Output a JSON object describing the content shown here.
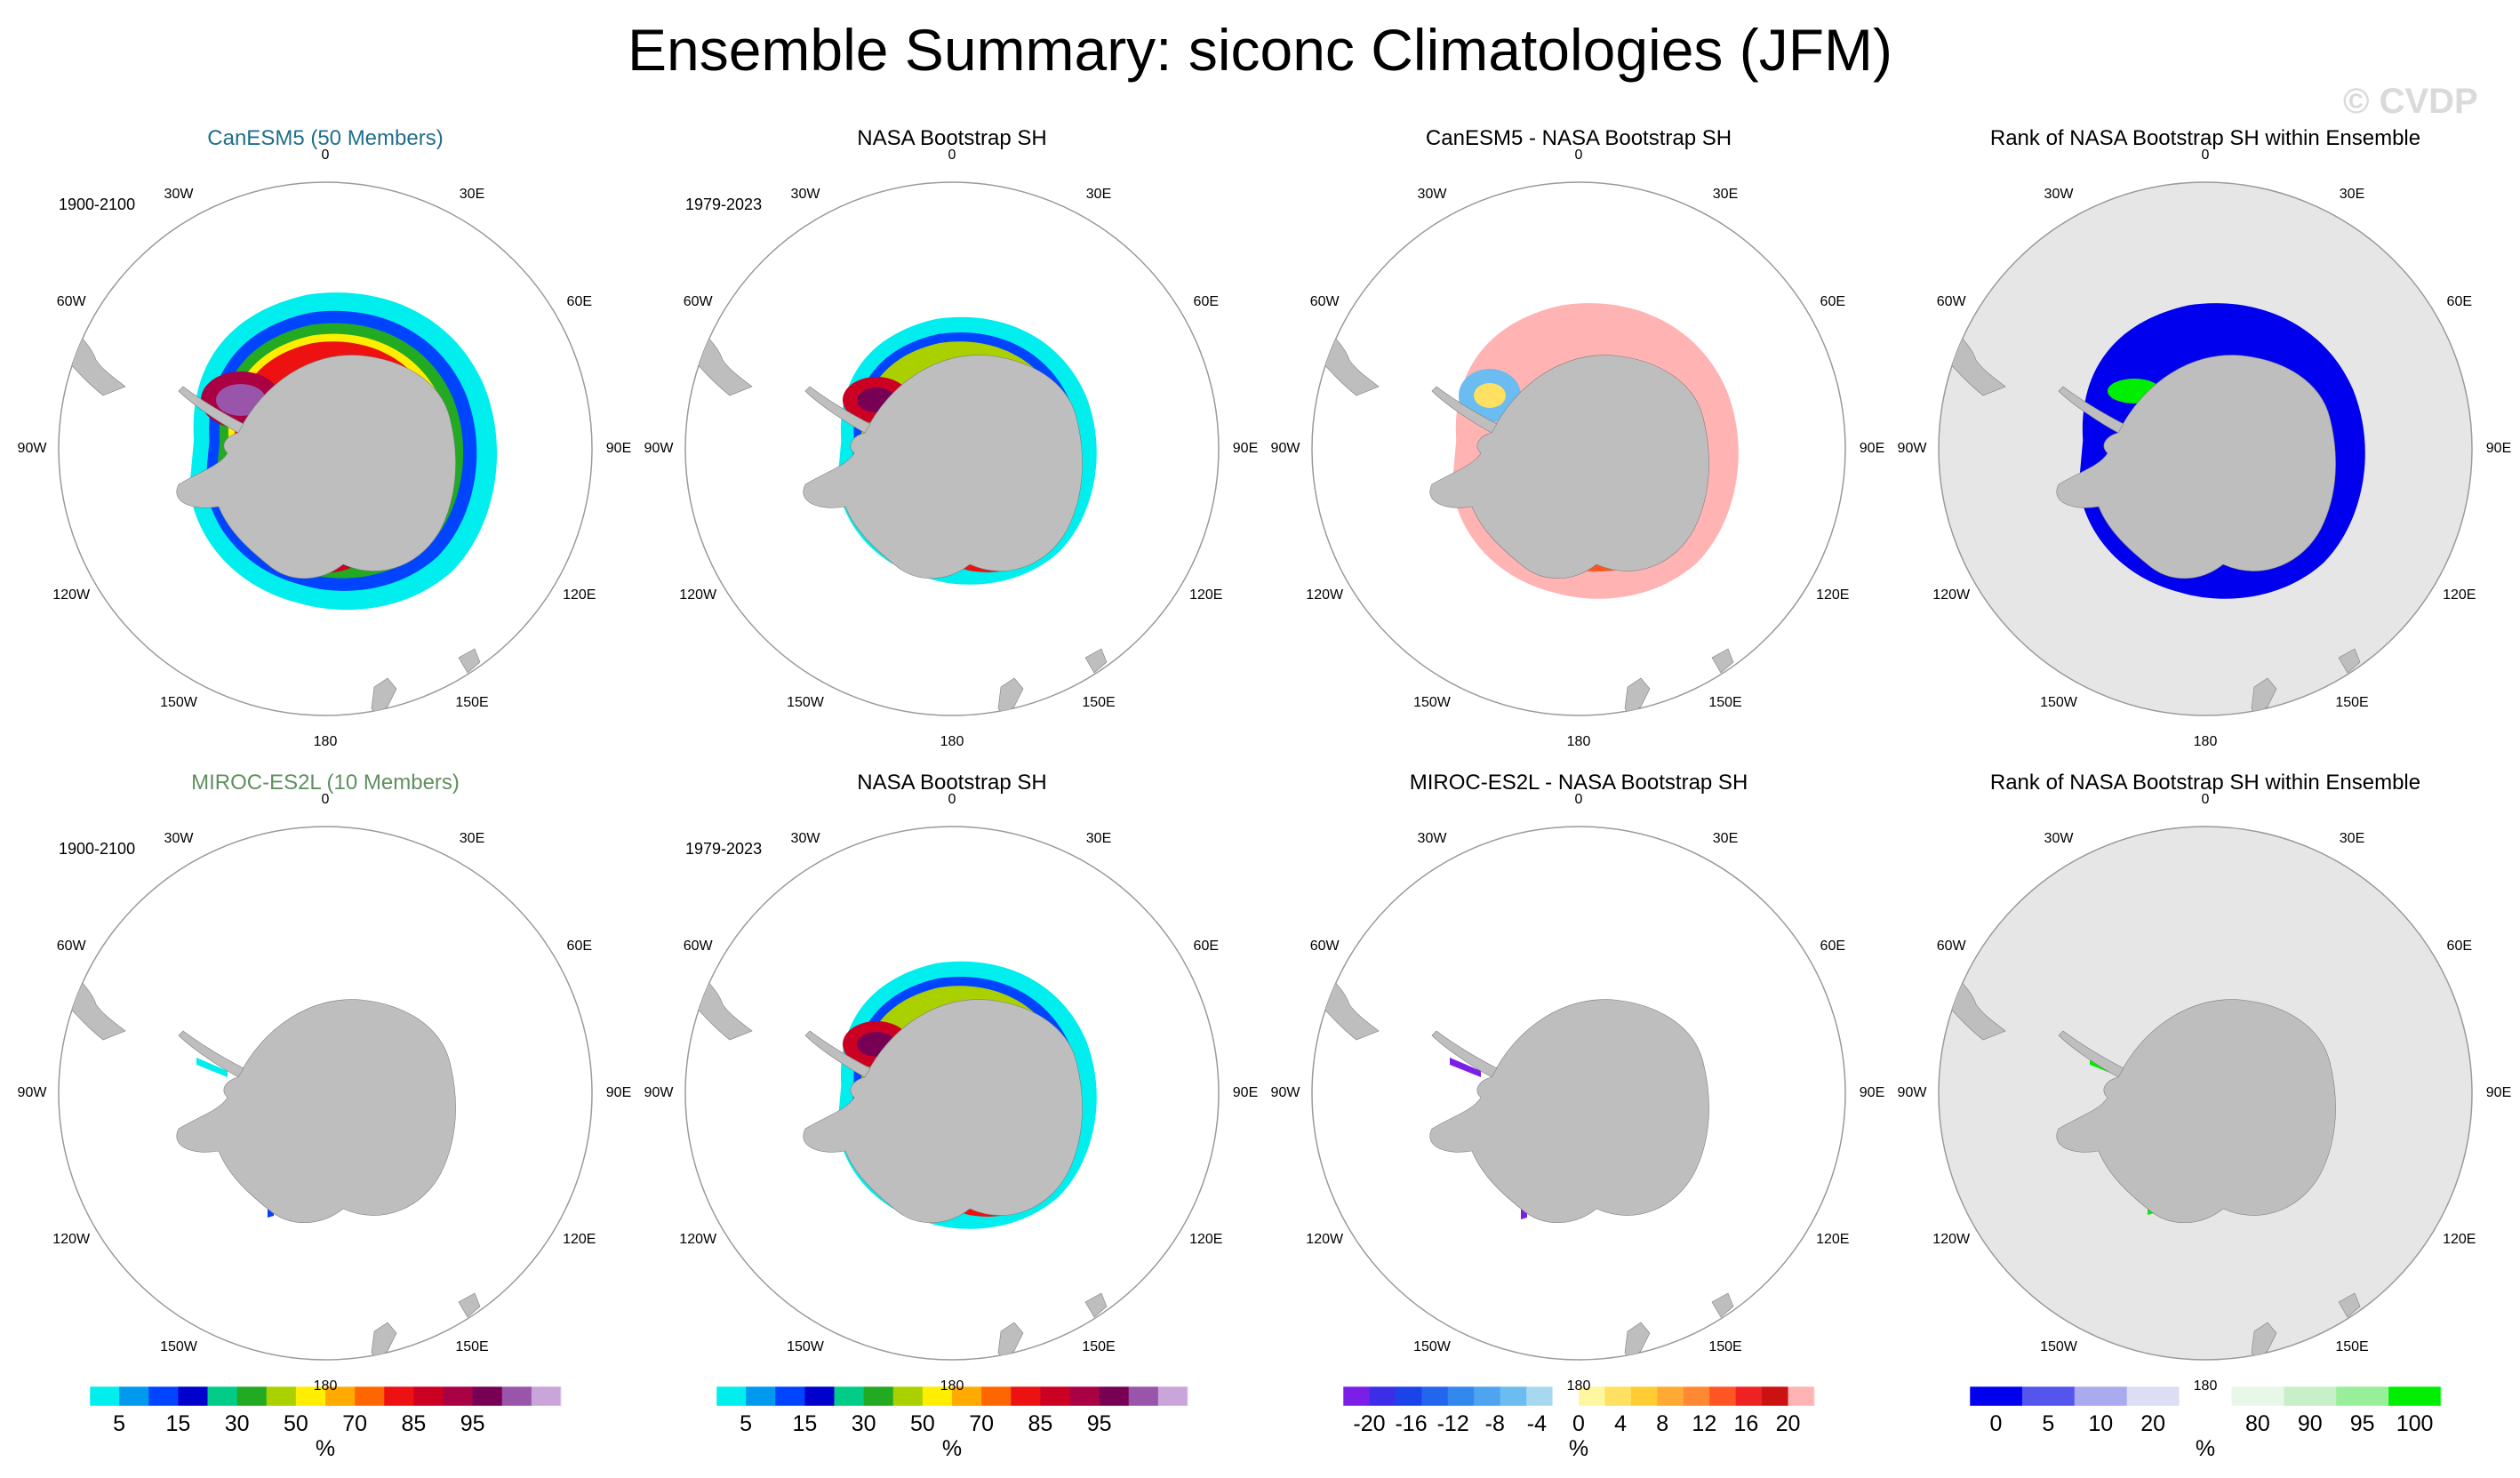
{
  "title": "Ensemble Summary: siconc Climatologies (JFM)",
  "watermark": "© CVDP",
  "longitude_labels": [
    "0",
    "30E",
    "60E",
    "90E",
    "120E",
    "150E",
    "180",
    "150W",
    "120W",
    "90W",
    "60W",
    "30W"
  ],
  "colors": {
    "land": "#bebebe",
    "rank_ocean": "#e6e6e6",
    "frame": "#9a9a9a",
    "canesm_title": "#1f6e8c",
    "miroc_title": "#5f8f5f"
  },
  "panels": [
    {
      "title": "CanESM5 (50 Members)",
      "period": "1900-2100"
    },
    {
      "title": "NASA Bootstrap SH",
      "period": "1979-2023"
    },
    {
      "title": "CanESM5 - NASA Bootstrap SH",
      "period": ""
    },
    {
      "title": "Rank of NASA Bootstrap SH within Ensemble",
      "period": ""
    },
    {
      "title": "MIROC-ES2L (10 Members)",
      "period": "1900-2100"
    },
    {
      "title": "NASA Bootstrap SH",
      "period": "1979-2023"
    },
    {
      "title": "MIROC-ES2L - NASA Bootstrap SH",
      "period": ""
    },
    {
      "title": "Rank of NASA Bootstrap SH within Ensemble",
      "period": ""
    }
  ],
  "chart_data": [
    {
      "type": "heatmap",
      "title": "CanESM5 (50 Members)",
      "period": "1900-2100",
      "variable": "siconc",
      "units": "%",
      "colorbar": "concentration"
    },
    {
      "type": "heatmap",
      "title": "NASA Bootstrap SH",
      "period": "1979-2023",
      "variable": "siconc",
      "units": "%",
      "colorbar": "concentration"
    },
    {
      "type": "heatmap",
      "title": "CanESM5 - NASA Bootstrap SH",
      "variable": "siconc difference",
      "units": "%",
      "colorbar": "difference"
    },
    {
      "type": "heatmap",
      "title": "Rank of NASA Bootstrap SH within Ensemble",
      "units": "%",
      "colorbar": "rank"
    },
    {
      "type": "heatmap",
      "title": "MIROC-ES2L (10 Members)",
      "period": "1900-2100",
      "variable": "siconc",
      "units": "%",
      "colorbar": "concentration"
    },
    {
      "type": "heatmap",
      "title": "NASA Bootstrap SH",
      "period": "1979-2023",
      "variable": "siconc",
      "units": "%",
      "colorbar": "concentration"
    },
    {
      "type": "heatmap",
      "title": "MIROC-ES2L - NASA Bootstrap SH",
      "variable": "siconc difference",
      "units": "%",
      "colorbar": "difference"
    },
    {
      "type": "heatmap",
      "title": "Rank of NASA Bootstrap SH within Ensemble",
      "units": "%",
      "colorbar": "rank"
    }
  ],
  "colorbars": [
    {
      "name": "concentration",
      "unit": "%",
      "labels": [
        "5",
        "15",
        "30",
        "50",
        "70",
        "85",
        "95"
      ],
      "colors": [
        "#00eeee",
        "#0099ee",
        "#0044ff",
        "#0000cc",
        "#00cc88",
        "#22aa22",
        "#aad000",
        "#ffee00",
        "#ffaa00",
        "#ff6600",
        "#ee1111",
        "#cc0022",
        "#aa0044",
        "#770055",
        "#9955aa",
        "#c9a5d9"
      ]
    },
    {
      "name": "difference",
      "unit": "%",
      "labels": [
        "-20",
        "-16",
        "-12",
        "-8",
        "-4",
        "0",
        "4",
        "8",
        "12",
        "16",
        "20"
      ],
      "colors": [
        "#7b1fe8",
        "#3c2ee8",
        "#1a44ea",
        "#2266ee",
        "#3388ee",
        "#4fa4f0",
        "#6bbcf0",
        "#a8d8f0",
        "#ffffff",
        "#fff6a0",
        "#ffe060",
        "#ffcc33",
        "#ffaa33",
        "#ff8833",
        "#ff5522",
        "#ee2222",
        "#cc1111",
        "#ffb3b3"
      ]
    },
    {
      "name": "rank",
      "unit": "%",
      "labels": [
        "0",
        "5",
        "10",
        "20",
        "80",
        "90",
        "95",
        "100"
      ],
      "colors": [
        "#0000ee",
        "#5555ee",
        "#aaaaee",
        "#ddddf4",
        "#ffffff",
        "#e8f8e8",
        "#c8f0c8",
        "#99ee99",
        "#00ee00"
      ]
    }
  ]
}
